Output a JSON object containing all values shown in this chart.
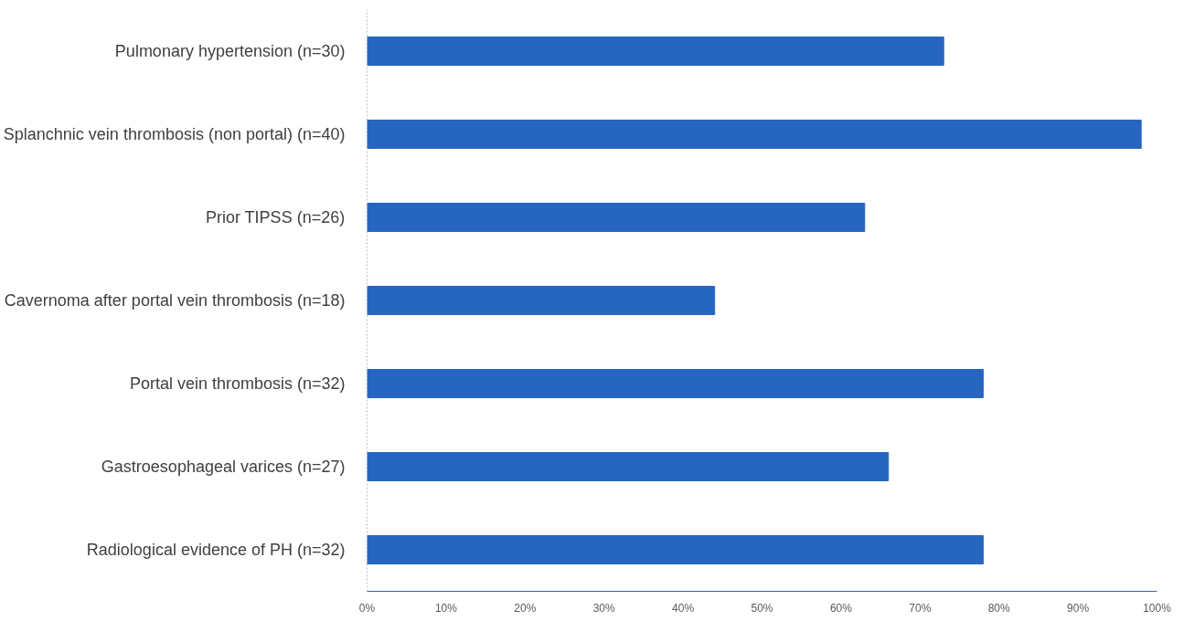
{
  "chart_data": {
    "type": "bar",
    "orientation": "horizontal",
    "categories": [
      "Pulmonary hypertension (n=30)",
      "Splanchnic vein thrombosis (non portal) (n=40)",
      "Prior TIPSS (n=26)",
      "Cavernoma after portal vein thrombosis (n=18)",
      "Portal vein thrombosis (n=32)",
      "Gastroesophageal varices (n=27)",
      "Radiological evidence of PH (n=32)"
    ],
    "values": [
      73,
      98,
      63,
      44,
      78,
      66,
      78
    ],
    "color": "#2766c0",
    "xlim": [
      0,
      100
    ],
    "xticks": [
      {
        "value": 0,
        "label": "0%"
      },
      {
        "value": 10,
        "label": "10%"
      },
      {
        "value": 20,
        "label": "20%"
      },
      {
        "value": 30,
        "label": "30%"
      },
      {
        "value": 40,
        "label": "40%"
      },
      {
        "value": 50,
        "label": "50%"
      },
      {
        "value": 60,
        "label": "60%"
      },
      {
        "value": 70,
        "label": "70%"
      },
      {
        "value": 80,
        "label": "80%"
      },
      {
        "value": 90,
        "label": "90%"
      },
      {
        "value": 100,
        "label": "100%"
      }
    ],
    "grid": false
  }
}
